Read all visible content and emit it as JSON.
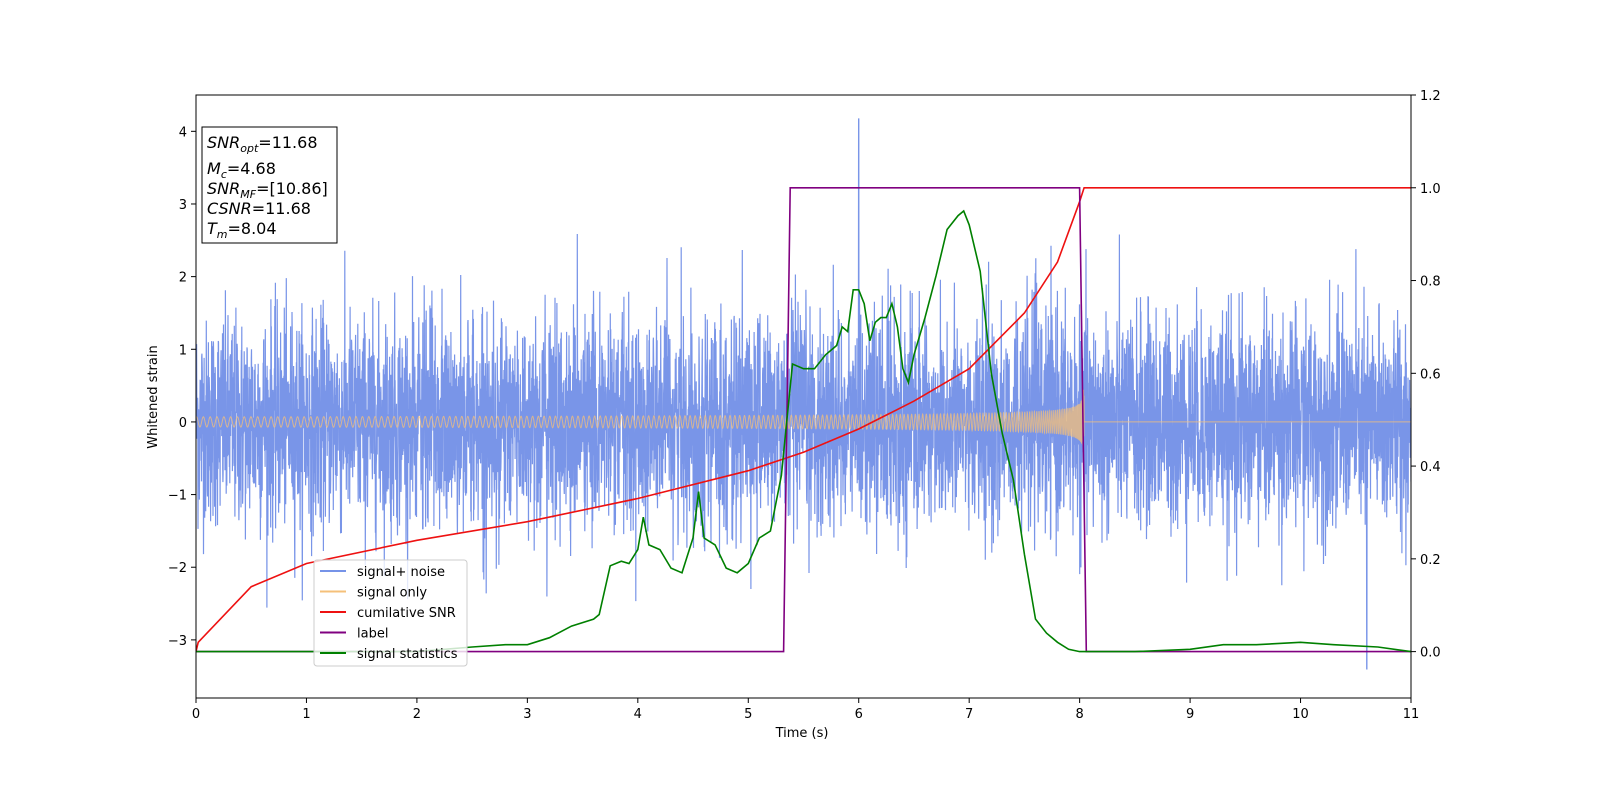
{
  "chart_data": {
    "type": "line",
    "title": "",
    "xlabel": "Time (s)",
    "ylabel": "Whitened strain",
    "xlim": [
      0,
      11
    ],
    "ylim": [
      -3.8,
      4.5
    ],
    "y2lim": [
      -0.1,
      1.2
    ],
    "xticks": [
      "0",
      "1",
      "2",
      "3",
      "4",
      "5",
      "6",
      "7",
      "8",
      "9",
      "10",
      "11"
    ],
    "yticks": [
      "−3",
      "−2",
      "−1",
      "0",
      "1",
      "2",
      "3",
      "4"
    ],
    "y2ticks": [
      "0.0",
      "0.2",
      "0.4",
      "0.6",
      "0.8",
      "1.0",
      "1.2"
    ],
    "grid": false,
    "legend_position": "lower-left",
    "series": [
      {
        "name": "signal+ noise",
        "color": "#7693e8",
        "axis": "left",
        "description_values": {
          "noise_sigma": 0.72,
          "noise_max_abs": 2.6,
          "peak_x": 6.0,
          "peak_y": 4.17,
          "min_x": 10.6,
          "min_y": -3.4
        }
      },
      {
        "name": "signal only",
        "color": "#f5c07a",
        "axis": "left",
        "envelope": {
          "t_merger": 8.04,
          "amp_start": 0.07,
          "amp_end": 0.75
        }
      },
      {
        "name": "cumilative SNR",
        "color": "#ee1111",
        "axis": "right",
        "x": [
          0,
          0.02,
          0.5,
          1,
          2,
          3,
          4,
          5,
          5.5,
          6,
          6.5,
          7,
          7.5,
          7.8,
          8.0,
          8.04,
          8.06,
          11
        ],
        "y": [
          0.0,
          0.02,
          0.14,
          0.19,
          0.24,
          0.28,
          0.33,
          0.39,
          0.43,
          0.48,
          0.54,
          0.61,
          0.73,
          0.84,
          0.97,
          1.0,
          1.0,
          1.0
        ]
      },
      {
        "name": "label",
        "color": "#800080",
        "axis": "right",
        "x": [
          0,
          5.32,
          5.38,
          8.0,
          8.06,
          11
        ],
        "y": [
          0.0,
          0.0,
          1.0,
          1.0,
          0.0,
          0.0
        ]
      },
      {
        "name": "signal statistics",
        "color": "#008000",
        "axis": "right",
        "x": [
          0,
          2.0,
          2.5,
          2.8,
          3.0,
          3.2,
          3.4,
          3.6,
          3.65,
          3.75,
          3.85,
          3.92,
          4.0,
          4.05,
          4.1,
          4.2,
          4.3,
          4.4,
          4.5,
          4.55,
          4.6,
          4.7,
          4.8,
          4.9,
          5.0,
          5.1,
          5.2,
          5.3,
          5.35,
          5.4,
          5.5,
          5.6,
          5.7,
          5.8,
          5.85,
          5.9,
          5.95,
          6.0,
          6.05,
          6.1,
          6.15,
          6.2,
          6.25,
          6.3,
          6.35,
          6.4,
          6.45,
          6.5,
          6.6,
          6.7,
          6.8,
          6.9,
          6.95,
          7.0,
          7.1,
          7.2,
          7.3,
          7.4,
          7.5,
          7.6,
          7.7,
          7.8,
          7.9,
          8.0,
          8.5,
          9.0,
          9.3,
          9.6,
          10.0,
          10.3,
          10.7,
          11.0
        ],
        "y": [
          0.0,
          0.0,
          0.01,
          0.015,
          0.015,
          0.03,
          0.055,
          0.07,
          0.08,
          0.185,
          0.195,
          0.19,
          0.22,
          0.29,
          0.23,
          0.22,
          0.18,
          0.17,
          0.245,
          0.345,
          0.245,
          0.23,
          0.18,
          0.17,
          0.19,
          0.245,
          0.26,
          0.38,
          0.5,
          0.62,
          0.61,
          0.61,
          0.64,
          0.66,
          0.7,
          0.69,
          0.78,
          0.78,
          0.75,
          0.67,
          0.71,
          0.72,
          0.72,
          0.75,
          0.7,
          0.61,
          0.58,
          0.64,
          0.72,
          0.81,
          0.91,
          0.94,
          0.95,
          0.92,
          0.82,
          0.6,
          0.47,
          0.37,
          0.21,
          0.07,
          0.04,
          0.02,
          0.005,
          0.0,
          0.0,
          0.005,
          0.015,
          0.015,
          0.02,
          0.015,
          0.01,
          0.0
        ]
      }
    ],
    "annotation": {
      "lines": [
        {
          "var": "SNR",
          "sub": "opt",
          "value": "=11.68"
        },
        {
          "var": "M",
          "sub": "c",
          "value": "=4.68"
        },
        {
          "var": "SNR",
          "sub": "MF",
          "value": "=[10.86]"
        },
        {
          "var": "CSNR",
          "sub": "",
          "value": "=11.68"
        },
        {
          "var": "T",
          "sub": "m",
          "value": "=8.04"
        }
      ]
    }
  }
}
